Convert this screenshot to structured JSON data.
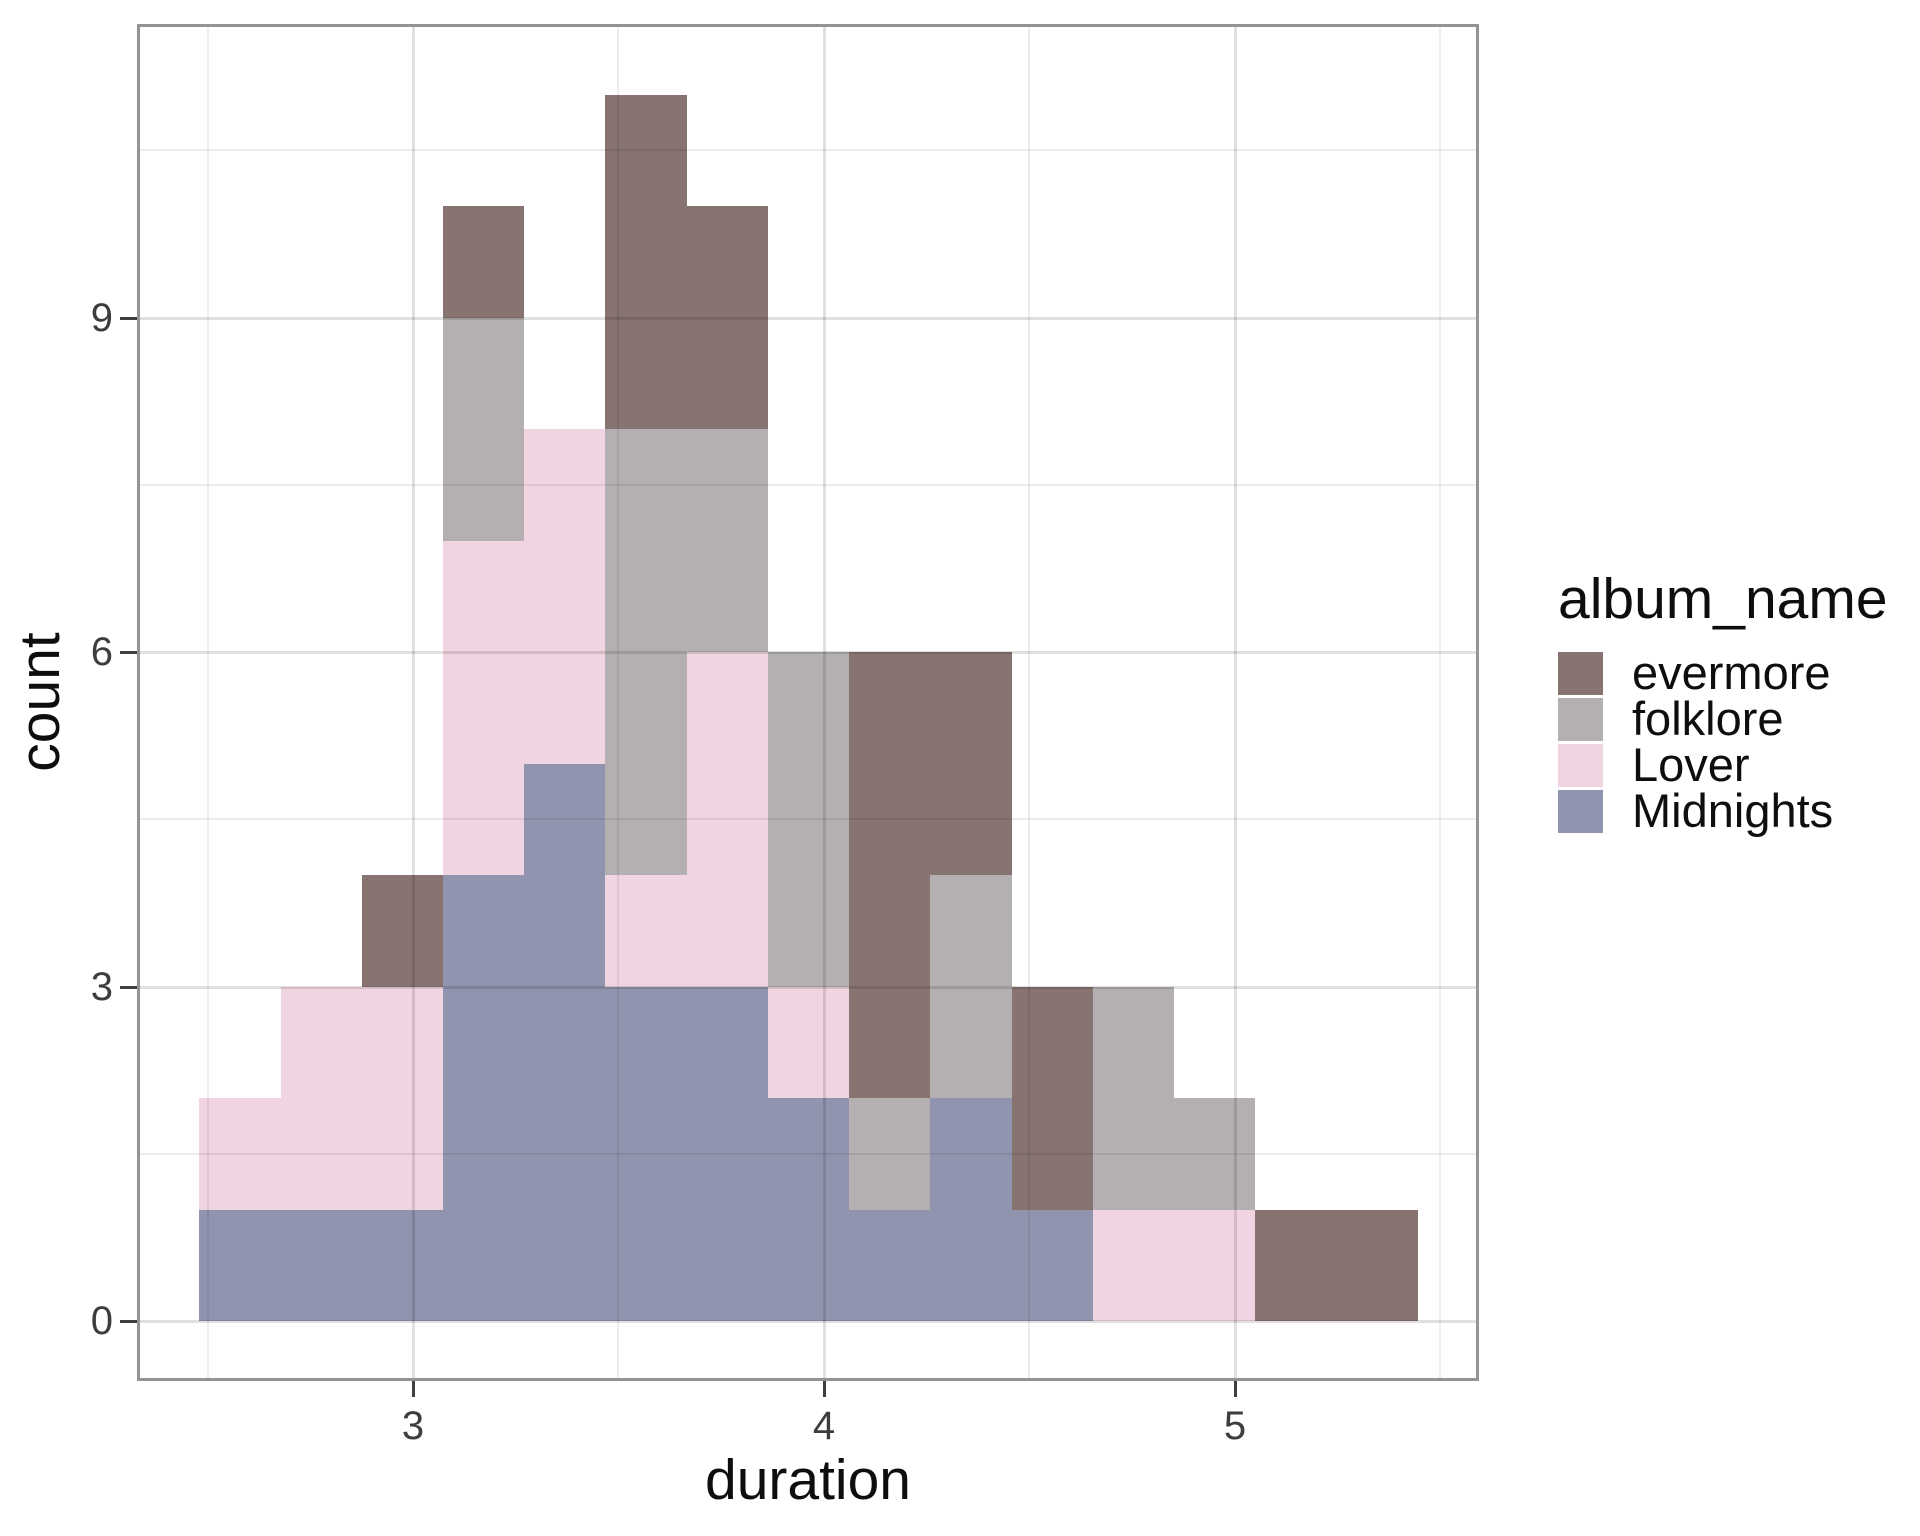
{
  "axes": {
    "x": {
      "title": "duration",
      "tick_labels": [
        "3",
        "4",
        "5"
      ],
      "tick_values": [
        3,
        4,
        5
      ],
      "minor_tick_values": [
        2.5,
        3.5,
        4.5,
        5.5
      ]
    },
    "y": {
      "title": "count",
      "tick_labels": [
        "0",
        "3",
        "6",
        "9"
      ],
      "tick_values": [
        0,
        3,
        6,
        9
      ],
      "minor_tick_values": [
        1.5,
        4.5,
        7.5,
        10.5
      ]
    }
  },
  "legend": {
    "title": "album_name",
    "position": "right",
    "entries": [
      {
        "label": "evermore",
        "color": "#877370"
      },
      {
        "label": "folklore",
        "color": "#b4b0b1"
      },
      {
        "label": "Lover",
        "color": "#f1d4e1"
      },
      {
        "label": "Midnights",
        "color": "#9094ae"
      }
    ]
  },
  "chart_data": {
    "type": "histogram",
    "stacked": true,
    "title": "",
    "xlabel": "duration",
    "ylabel": "count",
    "legend_title": "album_name",
    "grid": true,
    "xlim": [
      2.33,
      5.6
    ],
    "ylim": [
      0,
      11.6
    ],
    "bin_start": 2.48,
    "bin_width": 0.198,
    "n_bins": 15,
    "bin_edges": [
      2.48,
      2.68,
      2.88,
      3.07,
      3.27,
      3.47,
      3.67,
      3.87,
      4.07,
      4.27,
      4.47,
      4.67,
      4.87,
      5.07,
      5.27,
      5.46
    ],
    "stack_order_bottom_to_top": [
      "Midnights",
      "Lover",
      "folklore",
      "evermore"
    ],
    "series": [
      {
        "name": "evermore",
        "color": "#877370",
        "values": [
          0,
          0,
          1,
          1,
          0,
          3,
          2,
          0,
          4,
          2,
          2,
          0,
          0,
          1,
          1
        ]
      },
      {
        "name": "folklore",
        "color": "#b4b0b1",
        "values": [
          0,
          0,
          0,
          2,
          0,
          4,
          2,
          3,
          1,
          2,
          0,
          2,
          1,
          0,
          0
        ]
      },
      {
        "name": "Lover",
        "color": "#f1d4e1",
        "values": [
          1,
          2,
          2,
          3,
          3,
          1,
          3,
          1,
          0,
          0,
          0,
          1,
          1,
          0,
          0
        ]
      },
      {
        "name": "Midnights",
        "color": "#9094ae",
        "values": [
          1,
          1,
          1,
          4,
          5,
          3,
          3,
          2,
          1,
          2,
          1,
          0,
          0,
          0,
          0
        ]
      }
    ],
    "bin_totals": [
      2,
      3,
      4,
      10,
      8,
      11,
      10,
      6,
      6,
      6,
      3,
      3,
      2,
      1,
      1
    ]
  }
}
